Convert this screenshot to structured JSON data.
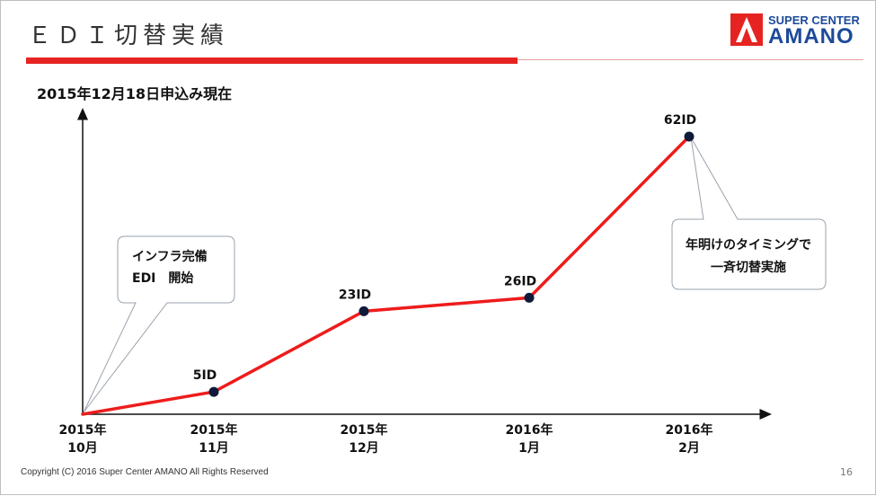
{
  "slide": {
    "title": "ＥＤＩ切替実績",
    "subtitle": "2015年12月18日申込み現在",
    "footer": "Copyright (C) 2016 Super Center AMANO All Rights Reserved",
    "page_number": "16"
  },
  "logo": {
    "top_text": "SUPER CENTER",
    "main_text": "AMANO"
  },
  "callouts": {
    "left": [
      "インフラ完備",
      "EDI　開始"
    ],
    "right": [
      "年明けのタイミングで",
      "一斉切替実施"
    ]
  },
  "colors": {
    "line": "#ee1c1c",
    "marker": "#0d1a3a",
    "accent": "#e52421",
    "brand": "#1d4a9a"
  },
  "chart_data": {
    "type": "line",
    "title": "2015年12月18日申込み現在",
    "xlabel": "",
    "ylabel": "",
    "ylim": [
      0,
      62
    ],
    "grid": false,
    "x": [
      "2015年\n10月",
      "2015年\n11月",
      "2015年\n12月",
      "2016年\n1月",
      "2016年\n2月"
    ],
    "series": [
      {
        "values": [
          0,
          5,
          23,
          26,
          62
        ],
        "data_labels": [
          "",
          "5ID",
          "23ID",
          "26ID",
          "62ID"
        ]
      }
    ]
  }
}
